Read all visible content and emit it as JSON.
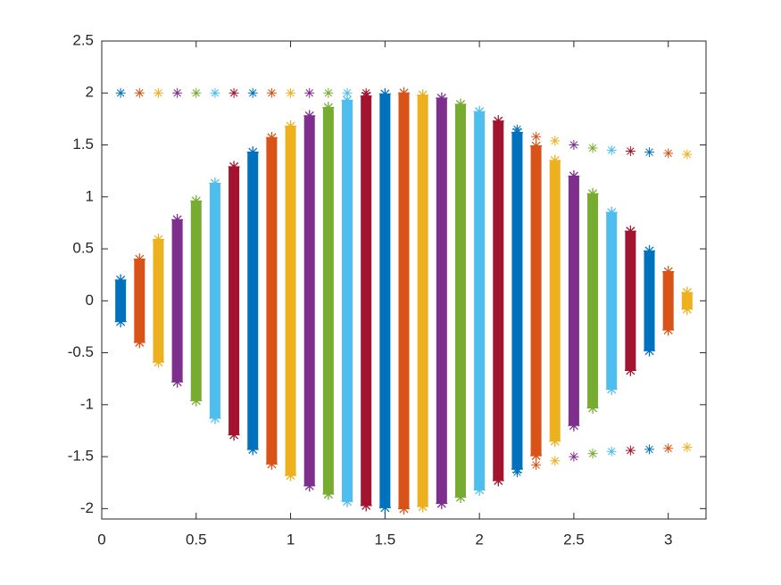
{
  "chart_data": {
    "type": "scatter",
    "xlim": [
      0,
      3.2
    ],
    "ylim": [
      -2.1,
      2.5
    ],
    "xticks": [
      0,
      0.5,
      1,
      1.5,
      2,
      2.5,
      3
    ],
    "yticks": [
      -2,
      -1.5,
      -1,
      -0.5,
      0,
      0.5,
      1,
      1.5,
      2,
      2.5
    ],
    "series": [
      {
        "color": "#0072BD",
        "x": 0.1,
        "range": [
          -0.2,
          0.2
        ],
        "y": [
          2
        ]
      },
      {
        "color": "#D95319",
        "x": 0.2,
        "range": [
          -0.4,
          0.4
        ],
        "y": [
          2
        ]
      },
      {
        "color": "#EDB120",
        "x": 0.3,
        "range": [
          -0.59,
          0.59
        ],
        "y": [
          2
        ]
      },
      {
        "color": "#7E2F8E",
        "x": 0.4,
        "range": [
          -0.78,
          0.78
        ],
        "y": [
          2
        ]
      },
      {
        "color": "#77AC30",
        "x": 0.5,
        "range": [
          -0.96,
          0.96
        ],
        "y": [
          2
        ]
      },
      {
        "color": "#4DBEEE",
        "x": 0.6,
        "range": [
          -1.13,
          1.13
        ],
        "y": [
          2
        ]
      },
      {
        "color": "#A2142F",
        "x": 0.7,
        "range": [
          -1.29,
          1.29
        ],
        "y": [
          2
        ]
      },
      {
        "color": "#0072BD",
        "x": 0.8,
        "range": [
          -1.43,
          1.43
        ],
        "y": [
          2
        ]
      },
      {
        "color": "#D95319",
        "x": 0.9,
        "range": [
          -1.57,
          1.57
        ],
        "y": [
          2
        ]
      },
      {
        "color": "#EDB120",
        "x": 1.0,
        "range": [
          -1.68,
          1.68
        ],
        "y": [
          2
        ]
      },
      {
        "color": "#7E2F8E",
        "x": 1.1,
        "range": [
          -1.78,
          1.78
        ],
        "y": [
          2
        ]
      },
      {
        "color": "#77AC30",
        "x": 1.2,
        "range": [
          -1.86,
          1.86
        ],
        "y": [
          2
        ]
      },
      {
        "color": "#4DBEEE",
        "x": 1.3,
        "range": [
          -1.93,
          1.93
        ],
        "y": [
          2
        ]
      },
      {
        "color": "#A2142F",
        "x": 1.4,
        "range": [
          -1.97,
          1.97
        ],
        "y": [
          2
        ]
      },
      {
        "color": "#0072BD",
        "x": 1.5,
        "range": [
          -1.99,
          1.99
        ],
        "y": []
      },
      {
        "color": "#D95319",
        "x": 1.6,
        "range": [
          -2.0,
          2.0
        ],
        "y": []
      },
      {
        "color": "#EDB120",
        "x": 1.7,
        "range": [
          -1.98,
          1.98
        ],
        "y": []
      },
      {
        "color": "#7E2F8E",
        "x": 1.8,
        "range": [
          -1.95,
          1.95
        ],
        "y": []
      },
      {
        "color": "#77AC30",
        "x": 1.9,
        "range": [
          -1.89,
          1.89
        ],
        "y": []
      },
      {
        "color": "#4DBEEE",
        "x": 2.0,
        "range": [
          -1.82,
          1.82
        ],
        "y": []
      },
      {
        "color": "#A2142F",
        "x": 2.1,
        "range": [
          -1.73,
          1.73
        ],
        "y": []
      },
      {
        "color": "#0072BD",
        "x": 2.2,
        "range": [
          -1.62,
          1.62
        ],
        "y": [
          1.65,
          -1.65
        ]
      },
      {
        "color": "#D95319",
        "x": 2.3,
        "range": [
          -1.49,
          1.49
        ],
        "y": [
          1.58,
          -1.58
        ]
      },
      {
        "color": "#EDB120",
        "x": 2.4,
        "range": [
          -1.35,
          1.35
        ],
        "y": [
          1.54,
          -1.54
        ]
      },
      {
        "color": "#7E2F8E",
        "x": 2.5,
        "range": [
          -1.2,
          1.2
        ],
        "y": [
          1.5,
          -1.5
        ]
      },
      {
        "color": "#77AC30",
        "x": 2.6,
        "range": [
          -1.03,
          1.03
        ],
        "y": [
          1.47,
          -1.47
        ]
      },
      {
        "color": "#4DBEEE",
        "x": 2.7,
        "range": [
          -0.85,
          0.85
        ],
        "y": [
          1.45,
          -1.45
        ]
      },
      {
        "color": "#A2142F",
        "x": 2.8,
        "range": [
          -0.67,
          0.67
        ],
        "y": [
          1.44,
          -1.44
        ]
      },
      {
        "color": "#0072BD",
        "x": 2.9,
        "range": [
          -0.48,
          0.48
        ],
        "y": [
          1.43,
          -1.43
        ]
      },
      {
        "color": "#D95319",
        "x": 3.0,
        "range": [
          -0.28,
          0.28
        ],
        "y": [
          1.42,
          -1.42
        ]
      },
      {
        "color": "#EDB120",
        "x": 3.1,
        "range": [
          -0.08,
          0.08
        ],
        "y": [
          1.41,
          -1.41
        ]
      }
    ]
  }
}
